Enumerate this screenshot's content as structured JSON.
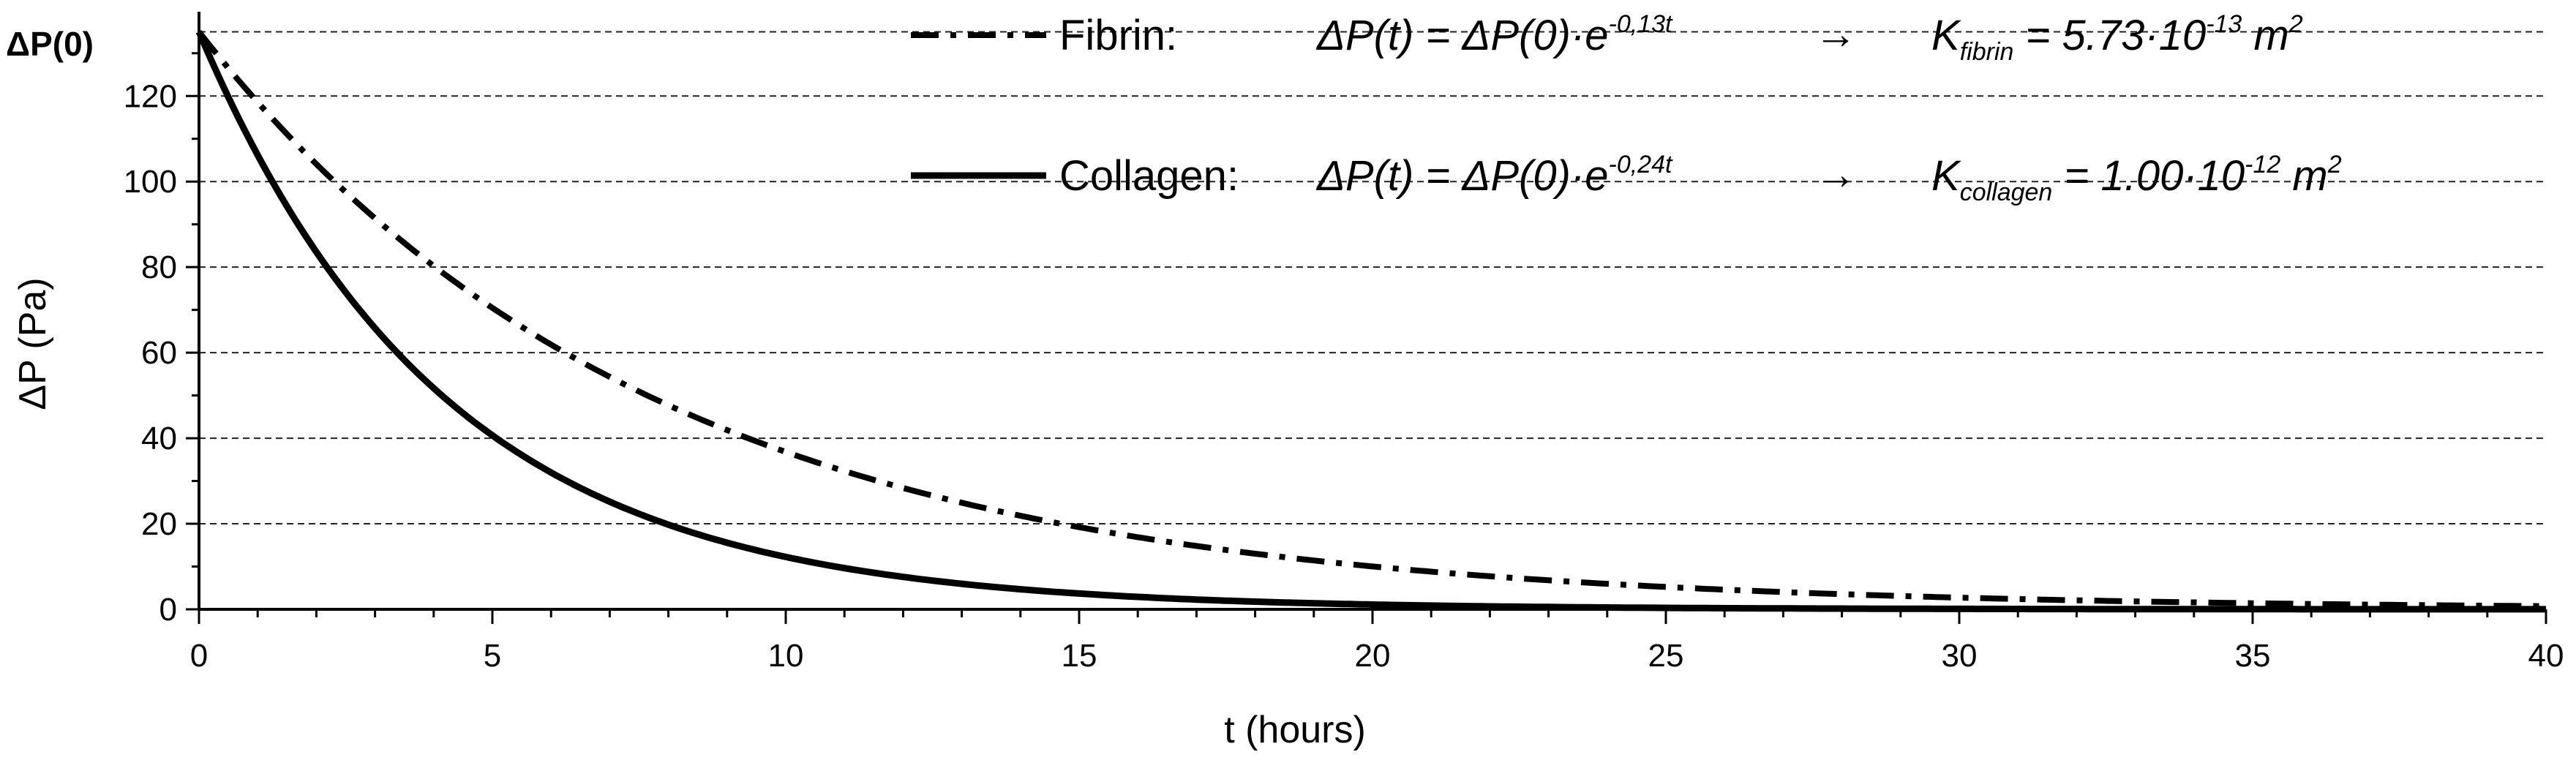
{
  "chart_data": {
    "type": "line",
    "xlabel": "t (hours)",
    "ylabel": "ΔP (Pa)",
    "xlim": [
      0,
      40
    ],
    "ylim": [
      0,
      138
    ],
    "x_ticks": [
      0,
      5,
      10,
      15,
      20,
      25,
      30,
      35,
      40
    ],
    "y_ticks": [
      0,
      20,
      40,
      60,
      80,
      100,
      120
    ],
    "y_top_label": "ΔP(0)",
    "grid": "horizontal-dashed",
    "legend_position": "top-right",
    "series": [
      {
        "name": "Fibrin:",
        "line_style": "dash-dot",
        "p0": 135,
        "rate": 0.13,
        "equation_lhs": "ΔP(t) = ΔP(0)·e",
        "equation_exp": "-0,13t",
        "arrow": "→",
        "k_symbol": "K",
        "k_sub": "fibrin",
        "k_value": " = 5.73·10",
        "k_exp": "-13",
        "k_unit": " m",
        "k_unit_exp": "2",
        "x": [
          0,
          1,
          2,
          3,
          4,
          5,
          6,
          7,
          8,
          9,
          10,
          11,
          12,
          13,
          14,
          15,
          16,
          17,
          18,
          19,
          20,
          21,
          22,
          23,
          24,
          25,
          26,
          27,
          28,
          29,
          30,
          31,
          32,
          33,
          34,
          35,
          36,
          37,
          38,
          39,
          40
        ],
        "y": [
          135,
          118.6,
          104.3,
          91.6,
          80.5,
          70.7,
          62.2,
          54.6,
          48.0,
          42.2,
          37.1,
          32.6,
          28.6,
          25.2,
          22.1,
          19.4,
          17.1,
          15.0,
          13.2,
          11.6,
          10.2,
          9.0,
          7.9,
          6.9,
          6.1,
          5.3,
          4.7,
          4.1,
          3.6,
          3.2,
          2.8,
          2.5,
          2.2,
          1.9,
          1.7,
          1.4,
          1.3,
          1.1,
          1.0,
          0.9,
          0.7
        ]
      },
      {
        "name": "Collagen:",
        "line_style": "solid",
        "p0": 135,
        "rate": 0.24,
        "equation_lhs": "ΔP(t) = ΔP(0)·e",
        "equation_exp": "-0,24t",
        "arrow": "→",
        "k_symbol": "K",
        "k_sub": "collagen",
        "k_value": " = 1.00·10",
        "k_exp": "-12",
        "k_unit": " m",
        "k_unit_exp": "2",
        "x": [
          0,
          1,
          2,
          3,
          4,
          5,
          6,
          7,
          8,
          9,
          10,
          11,
          12,
          13,
          14,
          15,
          16,
          17,
          18,
          19,
          20,
          21,
          22,
          23,
          24,
          25,
          26,
          27,
          28,
          29,
          30,
          31,
          32,
          33,
          34,
          35,
          36,
          37,
          38,
          39,
          40
        ],
        "y": [
          135,
          106.2,
          83.5,
          65.7,
          51.7,
          40.7,
          32.0,
          25.2,
          19.8,
          15.6,
          12.2,
          9.6,
          7.6,
          6.0,
          4.7,
          3.7,
          2.9,
          2.3,
          1.8,
          1.4,
          1.1,
          0.9,
          0.7,
          0.5,
          0.4,
          0.3,
          0.3,
          0.2,
          0.2,
          0.1,
          0.1,
          0.1,
          0.1,
          0.1,
          0.0,
          0.0,
          0.0,
          0.0,
          0.0,
          0.0,
          0.0
        ]
      }
    ]
  }
}
